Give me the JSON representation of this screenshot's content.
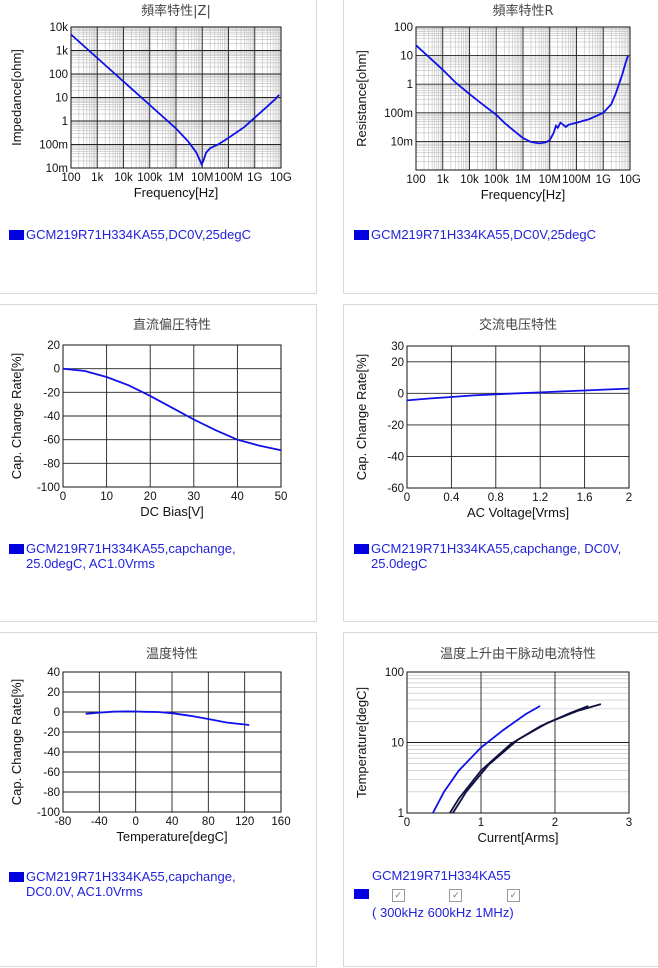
{
  "colors": {
    "series_blue": "#1010e8",
    "series_navy": "#101040",
    "legend_text": "#2222dd"
  },
  "chart_data": [
    {
      "id": "c1",
      "type": "line",
      "title": "頻率特性|Z|",
      "xlabel": "Frequency[Hz]",
      "ylabel": "Impedance[ohm]",
      "xscale": "log",
      "yscale": "log",
      "xlim": [
        100,
        10000000000
      ],
      "ylim": [
        0.01,
        10000
      ],
      "xticks": [
        100,
        1000,
        10000,
        100000,
        1000000,
        10000000,
        100000000,
        1000000000,
        10000000000
      ],
      "xticklabels": [
        "100",
        "1k",
        "10k",
        "100k",
        "1M",
        "10M",
        "100M",
        "1G",
        "10G"
      ],
      "yticks": [
        0.01,
        0.1,
        1,
        10,
        100,
        1000,
        10000
      ],
      "yticklabels": [
        "10m",
        "100m",
        "1",
        "10",
        "100",
        "1k",
        "10k"
      ],
      "grid": true,
      "series": [
        {
          "color": "#1010e8",
          "points": [
            [
              100,
              4800
            ],
            [
              1000,
              480
            ],
            [
              10000,
              48
            ],
            [
              100000,
              4.8
            ],
            [
              1000000,
              0.48
            ],
            [
              3000000,
              0.13
            ],
            [
              6000000,
              0.045
            ],
            [
              8000000,
              0.022
            ],
            [
              9500000,
              0.014
            ],
            [
              11000000,
              0.02
            ],
            [
              14000000,
              0.045
            ],
            [
              20000000,
              0.07
            ],
            [
              40000000,
              0.1
            ],
            [
              100000000,
              0.19
            ],
            [
              400000000,
              0.55
            ],
            [
              1000000000,
              1.4
            ],
            [
              3000000000,
              4.2
            ],
            [
              6000000000,
              8.5
            ],
            [
              8500000000,
              13
            ]
          ]
        }
      ],
      "legend": [
        "GCM219R71H334KA55,DC0V,25degC"
      ]
    },
    {
      "id": "c2",
      "type": "line",
      "title": "頻率特性R",
      "xlabel": "Frequency[Hz]",
      "ylabel": "Resistance[ohm]",
      "xscale": "log",
      "yscale": "log",
      "xlim": [
        100,
        10000000000
      ],
      "ylim": [
        0.001,
        100
      ],
      "xticks": [
        100,
        1000,
        10000,
        100000,
        1000000,
        10000000,
        100000000,
        1000000000,
        10000000000
      ],
      "xticklabels": [
        "100",
        "1k",
        "10k",
        "100k",
        "1M",
        "10M",
        "100M",
        "1G",
        "10G"
      ],
      "yticks": [
        0.01,
        0.1,
        1,
        10,
        100
      ],
      "yticklabels": [
        "10m",
        "100m",
        "1",
        "10",
        "100"
      ],
      "grid": true,
      "series": [
        {
          "color": "#1010e8",
          "points": [
            [
              100,
              23
            ],
            [
              300,
              9
            ],
            [
              1000,
              3.2
            ],
            [
              3000,
              1.15
            ],
            [
              10000,
              0.45
            ],
            [
              30000,
              0.2
            ],
            [
              100000,
              0.085
            ],
            [
              200000,
              0.045
            ],
            [
              500000,
              0.022
            ],
            [
              1000000,
              0.013
            ],
            [
              2000000,
              0.0095
            ],
            [
              4000000,
              0.0085
            ],
            [
              7000000,
              0.0092
            ],
            [
              10000000,
              0.011
            ],
            [
              14000000,
              0.02
            ],
            [
              17000000,
              0.035
            ],
            [
              20000000,
              0.03
            ],
            [
              25000000,
              0.045
            ],
            [
              30000000,
              0.04
            ],
            [
              40000000,
              0.032
            ],
            [
              50000000,
              0.038
            ],
            [
              100000000,
              0.045
            ],
            [
              300000000,
              0.06
            ],
            [
              1000000000,
              0.1
            ],
            [
              2000000000,
              0.2
            ],
            [
              3000000000,
              0.5
            ],
            [
              5000000000,
              2
            ],
            [
              7000000000,
              6
            ],
            [
              8500000000,
              10
            ]
          ]
        }
      ],
      "legend": [
        "GCM219R71H334KA55,DC0V,25degC"
      ]
    },
    {
      "id": "c3",
      "type": "line",
      "title": "直流偏圧特性",
      "xlabel": "DC Bias[V]",
      "ylabel": "Cap. Change Rate[%]",
      "xscale": "linear",
      "yscale": "linear",
      "xlim": [
        0,
        50
      ],
      "ylim": [
        -100,
        20
      ],
      "xticks": [
        0,
        10,
        20,
        30,
        40,
        50
      ],
      "xticklabels": [
        "0",
        "10",
        "20",
        "30",
        "40",
        "50"
      ],
      "yticks": [
        -100,
        -80,
        -60,
        -40,
        -20,
        0,
        20
      ],
      "yticklabels": [
        "-100",
        "-80",
        "-60",
        "-40",
        "-20",
        "0",
        "20"
      ],
      "grid": true,
      "series": [
        {
          "color": "#1010e8",
          "points": [
            [
              0,
              0
            ],
            [
              5,
              -2
            ],
            [
              10,
              -7
            ],
            [
              15,
              -14
            ],
            [
              20,
              -23
            ],
            [
              25,
              -33
            ],
            [
              30,
              -43
            ],
            [
              35,
              -52
            ],
            [
              40,
              -60
            ],
            [
              45,
              -65
            ],
            [
              50,
              -69
            ]
          ]
        }
      ],
      "legend": [
        "GCM219R71H334KA55,capchange,",
        "25.0degC, AC1.0Vrms"
      ]
    },
    {
      "id": "c4",
      "type": "line",
      "title": "交流电压特性",
      "xlabel": "AC Voltage[Vrms]",
      "ylabel": "Cap. Change Rate[%]",
      "xscale": "linear",
      "yscale": "linear",
      "xlim": [
        0,
        2
      ],
      "ylim": [
        -60,
        30
      ],
      "xticks": [
        0,
        0.4,
        0.8,
        1.2,
        1.6,
        2
      ],
      "xticklabels": [
        "0",
        "0.4",
        "0.8",
        "1.2",
        "1.6",
        "2"
      ],
      "yticks": [
        -60,
        -40,
        -20,
        0,
        20,
        30
      ],
      "yticklabels": [
        "-60",
        "-40",
        "-20",
        "0",
        "20",
        "30"
      ],
      "grid": true,
      "series": [
        {
          "color": "#1010e8",
          "points": [
            [
              0,
              -4.5
            ],
            [
              0.2,
              -3.3
            ],
            [
              0.4,
              -2.3
            ],
            [
              0.6,
              -1.3
            ],
            [
              0.8,
              -0.6
            ],
            [
              1.0,
              0
            ],
            [
              1.2,
              0.6
            ],
            [
              1.4,
              1.2
            ],
            [
              1.6,
              1.8
            ],
            [
              1.8,
              2.4
            ],
            [
              2.0,
              3.0
            ]
          ]
        }
      ],
      "legend": [
        "GCM219R71H334KA55,capchange, DC0V,",
        "25.0degC"
      ]
    },
    {
      "id": "c5",
      "type": "line",
      "title": "温度特性",
      "xlabel": "Temperature[degC]",
      "ylabel": "Cap. Change Rate[%]",
      "xscale": "linear",
      "yscale": "linear",
      "xlim": [
        -80,
        160
      ],
      "ylim": [
        -100,
        40
      ],
      "xticks": [
        -80,
        -40,
        0,
        40,
        80,
        120,
        160
      ],
      "xticklabels": [
        "-80",
        "-40",
        "0",
        "40",
        "80",
        "120",
        "160"
      ],
      "yticks": [
        -100,
        -80,
        -60,
        -40,
        -20,
        0,
        20,
        40
      ],
      "yticklabels": [
        "-100",
        "-80",
        "-60",
        "-40",
        "-20",
        "0",
        "20",
        "40"
      ],
      "grid": true,
      "series": [
        {
          "color": "#1010e8",
          "points": [
            [
              -55,
              -1.8
            ],
            [
              -40,
              -0.6
            ],
            [
              -25,
              0.3
            ],
            [
              -10,
              0.6
            ],
            [
              0,
              0.5
            ],
            [
              10,
              0.2
            ],
            [
              25,
              0
            ],
            [
              40,
              -1.2
            ],
            [
              60,
              -3.8
            ],
            [
              80,
              -7
            ],
            [
              100,
              -10.5
            ],
            [
              125,
              -13
            ]
          ]
        }
      ],
      "legend": [
        "GCM219R71H334KA55,capchange,",
        "DC0.0V, AC1.0Vrms"
      ]
    },
    {
      "id": "c6",
      "type": "line",
      "title": "温度上升由干脉动电流特性",
      "xlabel": "Current[Arms]",
      "ylabel": "Temperature[degC]",
      "xscale": "linear",
      "yscale": "log",
      "xlim": [
        0,
        3
      ],
      "ylim": [
        1,
        100
      ],
      "xticks": [
        0,
        1,
        2,
        3
      ],
      "xticklabels": [
        "0",
        "1",
        "2",
        "3"
      ],
      "yticks": [
        1,
        10,
        100
      ],
      "yticklabels": [
        "1",
        "10",
        "100"
      ],
      "grid": true,
      "series": [
        {
          "color": "#1010e8",
          "points": [
            [
              0.35,
              1
            ],
            [
              0.5,
              2
            ],
            [
              0.7,
              4
            ],
            [
              1.0,
              8.5
            ],
            [
              1.3,
              15
            ],
            [
              1.6,
              25
            ],
            [
              1.8,
              33
            ]
          ]
        },
        {
          "color": "#101040",
          "points": [
            [
              0.58,
              1
            ],
            [
              0.7,
              1.6
            ],
            [
              1.0,
              4
            ],
            [
              1.4,
              9.5
            ],
            [
              1.8,
              17
            ],
            [
              2.2,
              26
            ],
            [
              2.45,
              33
            ]
          ]
        },
        {
          "color": "#101040",
          "points": [
            [
              0.62,
              1
            ],
            [
              0.8,
              2
            ],
            [
              1.1,
              4.8
            ],
            [
              1.5,
              11
            ],
            [
              1.9,
              19
            ],
            [
              2.3,
              28
            ],
            [
              2.62,
              35
            ]
          ]
        }
      ],
      "legend": [
        "GCM219R71H334KA55"
      ]
    }
  ],
  "panel6_freq": {
    "open": "(",
    "f1": "300kHz",
    "f2": "600kHz",
    "f3": "1MHz",
    "close": ")"
  }
}
